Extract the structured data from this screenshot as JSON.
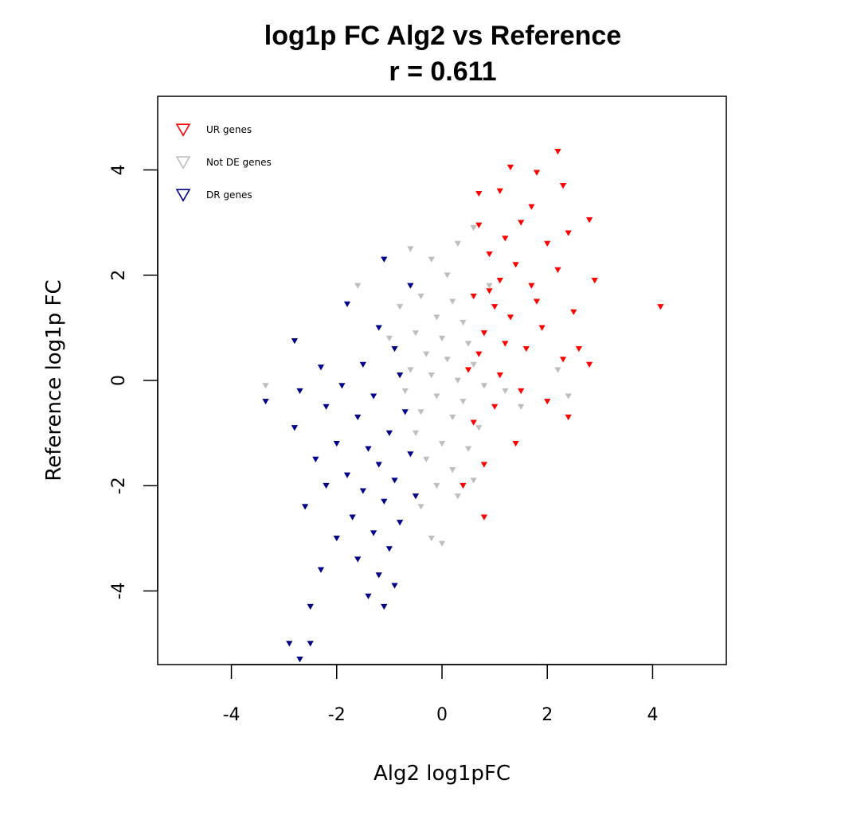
{
  "chart_data": {
    "type": "scatter",
    "title": "log1p FC Alg2 vs Reference",
    "subtitle": "r = 0.611",
    "xlabel": "Alg2 log1pFC",
    "ylabel": "Reference log1p FC",
    "xlim": [
      -5.4,
      5.4
    ],
    "ylim": [
      -5.4,
      5.4
    ],
    "xticks": [
      "-4",
      "-2",
      "0",
      "2",
      "4"
    ],
    "xtick_values": [
      -4,
      -2,
      0,
      2,
      4
    ],
    "yticks": [
      "-4",
      "-2",
      "0",
      "2",
      "4"
    ],
    "ytick_values": [
      -4,
      -2,
      0,
      2,
      4
    ],
    "grid": false,
    "legend_position": "top-left",
    "marker": "downward-triangle",
    "series": [
      {
        "name": "UR genes",
        "color": "#ff0000",
        "points": [
          [
            2.2,
            4.35
          ],
          [
            1.3,
            4.05
          ],
          [
            1.8,
            3.95
          ],
          [
            2.3,
            3.7
          ],
          [
            0.7,
            3.55
          ],
          [
            1.1,
            3.6
          ],
          [
            1.7,
            3.3
          ],
          [
            2.8,
            3.05
          ],
          [
            0.7,
            2.95
          ],
          [
            1.2,
            2.7
          ],
          [
            1.5,
            3.0
          ],
          [
            2.0,
            2.6
          ],
          [
            2.4,
            2.8
          ],
          [
            0.9,
            2.4
          ],
          [
            1.4,
            2.2
          ],
          [
            1.1,
            1.9
          ],
          [
            1.7,
            1.8
          ],
          [
            2.2,
            2.1
          ],
          [
            0.6,
            1.6
          ],
          [
            1.0,
            1.4
          ],
          [
            1.3,
            1.2
          ],
          [
            1.9,
            1.0
          ],
          [
            2.5,
            1.3
          ],
          [
            2.9,
            1.9
          ],
          [
            0.8,
            0.9
          ],
          [
            1.6,
            0.6
          ],
          [
            2.3,
            0.4
          ],
          [
            2.8,
            0.3
          ],
          [
            0.5,
            0.2
          ],
          [
            1.1,
            0.1
          ],
          [
            1.5,
            -0.2
          ],
          [
            2.0,
            -0.4
          ],
          [
            2.4,
            -0.7
          ],
          [
            0.6,
            -0.8
          ],
          [
            1.0,
            -0.5
          ],
          [
            1.4,
            -1.2
          ],
          [
            0.8,
            -1.6
          ],
          [
            0.4,
            -2.0
          ],
          [
            0.8,
            -2.6
          ],
          [
            4.15,
            1.4
          ],
          [
            0.9,
            1.7
          ],
          [
            1.2,
            0.7
          ],
          [
            0.7,
            0.5
          ],
          [
            1.8,
            1.5
          ],
          [
            2.6,
            0.6
          ]
        ]
      },
      {
        "name": "Not DE genes",
        "color": "#bebebe",
        "points": [
          [
            -3.35,
            -0.1
          ],
          [
            -1.6,
            1.8
          ],
          [
            -0.6,
            2.5
          ],
          [
            -0.2,
            2.3
          ],
          [
            0.3,
            2.6
          ],
          [
            0.6,
            2.9
          ],
          [
            0.1,
            2.0
          ],
          [
            -0.4,
            1.6
          ],
          [
            0.2,
            1.5
          ],
          [
            -0.1,
            1.2
          ],
          [
            0.4,
            1.1
          ],
          [
            -0.5,
            0.9
          ],
          [
            0.0,
            0.8
          ],
          [
            0.5,
            0.7
          ],
          [
            -0.3,
            0.5
          ],
          [
            0.1,
            0.4
          ],
          [
            0.6,
            0.3
          ],
          [
            -0.6,
            0.2
          ],
          [
            -0.2,
            0.1
          ],
          [
            0.3,
            0.0
          ],
          [
            0.8,
            -0.1
          ],
          [
            -0.7,
            -0.2
          ],
          [
            -0.1,
            -0.3
          ],
          [
            0.4,
            -0.4
          ],
          [
            -0.4,
            -0.6
          ],
          [
            0.2,
            -0.7
          ],
          [
            0.7,
            -0.9
          ],
          [
            -0.5,
            -1.0
          ],
          [
            0.0,
            -1.2
          ],
          [
            0.5,
            -1.3
          ],
          [
            -0.3,
            -1.5
          ],
          [
            0.2,
            -1.7
          ],
          [
            0.6,
            -1.9
          ],
          [
            -0.1,
            -2.0
          ],
          [
            0.3,
            -2.2
          ],
          [
            -0.4,
            -2.4
          ],
          [
            -0.2,
            -3.0
          ],
          [
            0.0,
            -3.1
          ],
          [
            1.2,
            -0.2
          ],
          [
            1.5,
            -0.5
          ],
          [
            2.2,
            0.2
          ],
          [
            2.4,
            -0.3
          ],
          [
            -0.8,
            1.4
          ],
          [
            -1.0,
            0.8
          ],
          [
            0.9,
            1.8
          ]
        ]
      },
      {
        "name": "DR genes",
        "color": "#00008b",
        "points": [
          [
            -1.1,
            2.3
          ],
          [
            -0.6,
            1.8
          ],
          [
            -1.8,
            1.45
          ],
          [
            -1.2,
            1.0
          ],
          [
            -2.8,
            0.75
          ],
          [
            -0.9,
            0.6
          ],
          [
            -1.5,
            0.3
          ],
          [
            -2.3,
            0.25
          ],
          [
            -0.8,
            0.1
          ],
          [
            -1.9,
            -0.1
          ],
          [
            -2.7,
            -0.2
          ],
          [
            -1.3,
            -0.3
          ],
          [
            -3.35,
            -0.4
          ],
          [
            -2.2,
            -0.5
          ],
          [
            -0.7,
            -0.6
          ],
          [
            -1.6,
            -0.7
          ],
          [
            -2.8,
            -0.9
          ],
          [
            -1.0,
            -1.0
          ],
          [
            -2.0,
            -1.2
          ],
          [
            -1.4,
            -1.3
          ],
          [
            -0.6,
            -1.4
          ],
          [
            -2.4,
            -1.5
          ],
          [
            -1.2,
            -1.6
          ],
          [
            -1.8,
            -1.8
          ],
          [
            -0.9,
            -1.9
          ],
          [
            -2.2,
            -2.0
          ],
          [
            -1.5,
            -2.1
          ],
          [
            -0.5,
            -2.2
          ],
          [
            -1.1,
            -2.3
          ],
          [
            -2.6,
            -2.4
          ],
          [
            -1.7,
            -2.6
          ],
          [
            -0.8,
            -2.7
          ],
          [
            -1.3,
            -2.9
          ],
          [
            -2.0,
            -3.0
          ],
          [
            -1.0,
            -3.2
          ],
          [
            -1.6,
            -3.4
          ],
          [
            -2.3,
            -3.6
          ],
          [
            -1.2,
            -3.7
          ],
          [
            -0.9,
            -3.9
          ],
          [
            -1.4,
            -4.1
          ],
          [
            -2.5,
            -4.3
          ],
          [
            -1.1,
            -4.3
          ],
          [
            -2.9,
            -5.0
          ],
          [
            -2.5,
            -5.0
          ],
          [
            -2.7,
            -5.3
          ]
        ]
      }
    ]
  }
}
